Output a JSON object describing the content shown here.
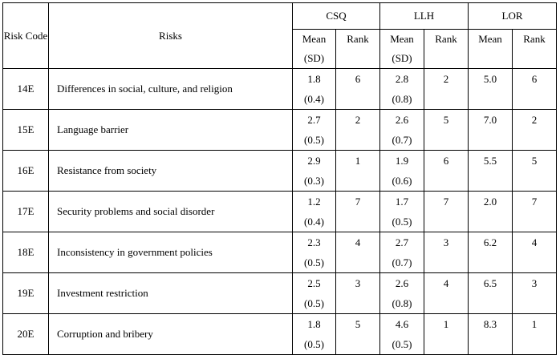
{
  "header": {
    "risk_code": "Risk Code",
    "risks": "Risks",
    "groups": [
      "CSQ",
      "LLH",
      "LOR"
    ],
    "mean_label": "Mean",
    "sd_label": "(SD)",
    "rank_label": "Rank"
  },
  "rows": [
    {
      "code": "14E",
      "risk": "Differences in social, culture, and religion",
      "csq_mean": "1.8",
      "csq_sd": "(0.4)",
      "csq_rank": "6",
      "llh_mean": "2.8",
      "llh_sd": "(0.8)",
      "llh_rank": "2",
      "lor_mean": "5.0",
      "lor_rank": "6"
    },
    {
      "code": "15E",
      "risk": "Language barrier",
      "csq_mean": "2.7",
      "csq_sd": "(0.5)",
      "csq_rank": "2",
      "llh_mean": "2.6",
      "llh_sd": "(0.7)",
      "llh_rank": "5",
      "lor_mean": "7.0",
      "lor_rank": "2"
    },
    {
      "code": "16E",
      "risk": "Resistance from society",
      "csq_mean": "2.9",
      "csq_sd": "(0.3)",
      "csq_rank": "1",
      "llh_mean": "1.9",
      "llh_sd": "(0.6)",
      "llh_rank": "6",
      "lor_mean": "5.5",
      "lor_rank": "5"
    },
    {
      "code": "17E",
      "risk": "Security problems and social disorder",
      "csq_mean": "1.2",
      "csq_sd": "(0.4)",
      "csq_rank": "7",
      "llh_mean": "1.7",
      "llh_sd": "(0.5)",
      "llh_rank": "7",
      "lor_mean": "2.0",
      "lor_rank": "7"
    },
    {
      "code": "18E",
      "risk": "Inconsistency in government policies",
      "csq_mean": "2.3",
      "csq_sd": "(0.5)",
      "csq_rank": "4",
      "llh_mean": "2.7",
      "llh_sd": "(0.7)",
      "llh_rank": "3",
      "lor_mean": "6.2",
      "lor_rank": "4"
    },
    {
      "code": "19E",
      "risk": "Investment restriction",
      "csq_mean": "2.5",
      "csq_sd": "(0.5)",
      "csq_rank": "3",
      "llh_mean": "2.6",
      "llh_sd": "(0.8)",
      "llh_rank": "4",
      "lor_mean": "6.5",
      "lor_rank": "3"
    },
    {
      "code": "20E",
      "risk": "Corruption and bribery",
      "csq_mean": "1.8",
      "csq_sd": "(0.5)",
      "csq_rank": "5",
      "llh_mean": "4.6",
      "llh_sd": "(0.5)",
      "llh_rank": "1",
      "lor_mean": "8.3",
      "lor_rank": "1"
    }
  ]
}
